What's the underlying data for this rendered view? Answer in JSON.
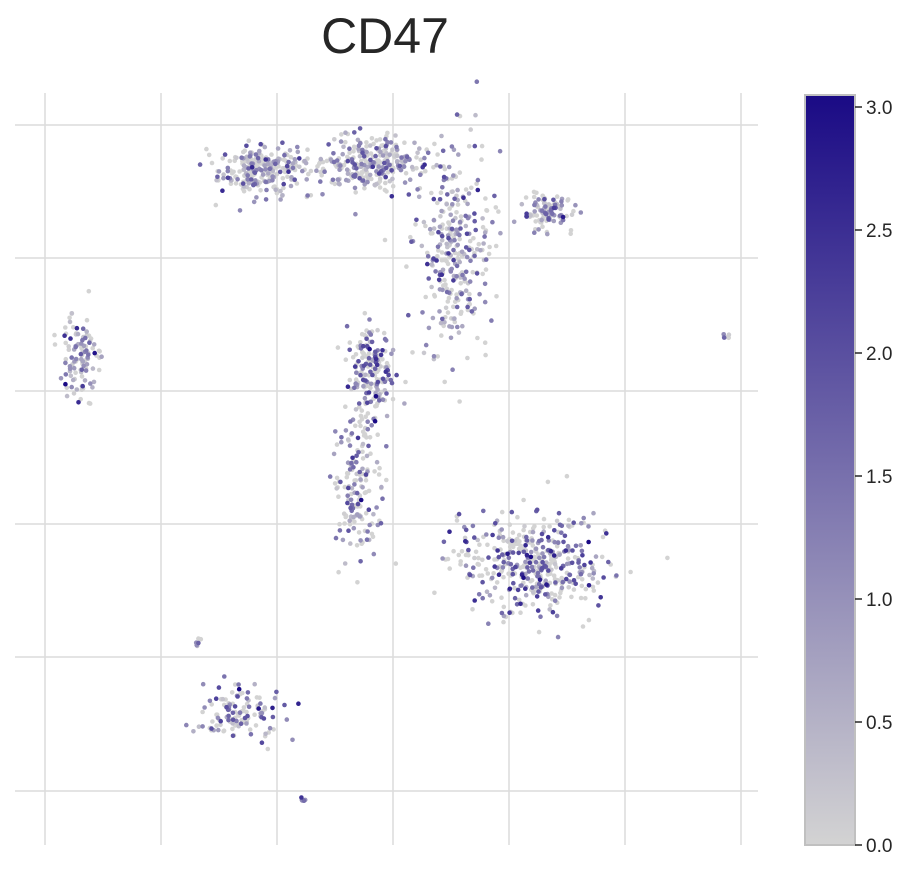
{
  "chart_data": {
    "type": "scatter",
    "title": "CD47",
    "xlabel": "",
    "ylabel": "",
    "grid": true,
    "colorbar": {
      "min": 0.0,
      "max": 3.0,
      "ticks": [
        "0.0",
        "0.5",
        "1.0",
        "1.5",
        "2.0",
        "2.5",
        "3.0"
      ],
      "color_low": "#d3d3d3",
      "color_high": "#1a0a85"
    },
    "clusters": [
      {
        "name": "",
        "cx": 2.6,
        "cy": 8.2,
        "rx": 0.5,
        "ry": 0.28,
        "n": 260,
        "expr_mean": 0.45
      },
      {
        "name": "",
        "cx": 3.95,
        "cy": 8.3,
        "rx": 0.6,
        "ry": 0.3,
        "n": 300,
        "expr_mean": 0.5
      },
      {
        "name": "",
        "cx": 5.0,
        "cy": 7.2,
        "rx": 0.42,
        "ry": 1.2,
        "n": 320,
        "expr_mean": 0.6
      },
      {
        "name": "",
        "cx": 6.15,
        "cy": 7.65,
        "rx": 0.3,
        "ry": 0.22,
        "n": 110,
        "expr_mean": 0.5
      },
      {
        "name": "",
        "cx": 3.95,
        "cy": 5.6,
        "rx": 0.28,
        "ry": 0.55,
        "n": 180,
        "expr_mean": 0.75
      },
      {
        "name": "",
        "cx": 3.8,
        "cy": 4.2,
        "rx": 0.3,
        "ry": 0.9,
        "n": 170,
        "expr_mean": 0.65
      },
      {
        "name": "",
        "cx": 6.0,
        "cy": 3.1,
        "rx": 0.85,
        "ry": 0.55,
        "n": 460,
        "expr_mean": 0.8
      },
      {
        "name": "",
        "cx": 0.3,
        "cy": 5.8,
        "rx": 0.2,
        "ry": 0.55,
        "n": 110,
        "expr_mean": 0.55
      },
      {
        "name": "",
        "cx": 2.3,
        "cy": 1.2,
        "rx": 0.45,
        "ry": 0.3,
        "n": 120,
        "expr_mean": 0.7
      },
      {
        "name": "",
        "cx": 8.4,
        "cy": 6.05,
        "rx": 0.05,
        "ry": 0.05,
        "n": 6,
        "expr_mean": 0.8
      },
      {
        "name": "",
        "cx": 1.8,
        "cy": 2.15,
        "rx": 0.04,
        "ry": 0.08,
        "n": 6,
        "expr_mean": 0.6
      },
      {
        "name": "",
        "cx": 3.1,
        "cy": 0.1,
        "rx": 0.04,
        "ry": 0.04,
        "n": 5,
        "expr_mean": 0.8
      }
    ],
    "xlim": [
      -0.5,
      8.8
    ],
    "ylim": [
      -0.5,
      9.2
    ]
  }
}
